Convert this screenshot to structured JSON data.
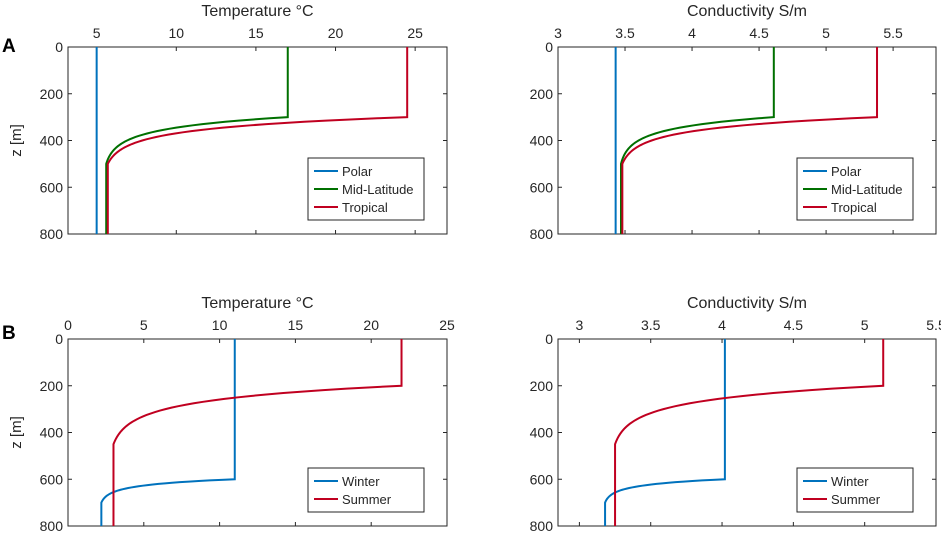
{
  "panels": [
    {
      "id": "A",
      "label": "A"
    },
    {
      "id": "B",
      "label": "B"
    }
  ],
  "chart_data": [
    {
      "panel": "A",
      "type": "line",
      "title": "Temperature °C",
      "xlabel": "Temperature °C",
      "ylabel": "z [m]",
      "xlim": [
        3.2,
        27
      ],
      "ylim": [
        0,
        800
      ],
      "y_reversed": true,
      "xticks": [
        5,
        10,
        15,
        20,
        25
      ],
      "xtick_labels": [
        "5",
        "10",
        "15",
        "20",
        "25"
      ],
      "yticks": [
        0,
        200,
        400,
        600,
        800
      ],
      "ytick_labels": [
        "0",
        "200",
        "400",
        "600",
        "800"
      ],
      "legend": [
        "Polar",
        "Mid-Latitude",
        "Tropical"
      ],
      "legend_position": "bottom-right",
      "series": [
        {
          "name": "Polar",
          "color": "#0072BD",
          "shape": "constant",
          "surface": 5,
          "deep": 5
        },
        {
          "name": "Mid-Latitude",
          "color": "#007000",
          "shape": "thermocline",
          "surface": 17,
          "deep": 5.6,
          "mixed_layer_depth": 300,
          "thermocline_bottom": 500
        },
        {
          "name": "Tropical",
          "color": "#C00020",
          "shape": "thermocline",
          "surface": 24.5,
          "deep": 5.7,
          "mixed_layer_depth": 300,
          "thermocline_bottom": 500
        }
      ]
    },
    {
      "panel": "A",
      "type": "line",
      "title": "Conductivity S/m",
      "xlabel": "Conductivity S/m",
      "ylabel": "",
      "xlim": [
        3,
        5.82
      ],
      "ylim": [
        0,
        800
      ],
      "y_reversed": true,
      "xticks": [
        3,
        3.5,
        4,
        4.5,
        5,
        5.5
      ],
      "xtick_labels": [
        "3",
        "3.5",
        "4",
        "4.5",
        "5",
        "5.5"
      ],
      "yticks": [
        0,
        200,
        400,
        600,
        800
      ],
      "ytick_labels": [
        "0",
        "200",
        "400",
        "600",
        "800"
      ],
      "legend": [
        "Polar",
        "Mid-Latitude",
        "Tropical"
      ],
      "legend_position": "bottom-right",
      "series": [
        {
          "name": "Polar",
          "color": "#0072BD",
          "shape": "constant",
          "surface": 3.43,
          "deep": 3.43
        },
        {
          "name": "Mid-Latitude",
          "color": "#007000",
          "shape": "thermocline",
          "surface": 4.61,
          "deep": 3.47,
          "mixed_layer_depth": 300,
          "thermocline_bottom": 500
        },
        {
          "name": "Tropical",
          "color": "#C00020",
          "shape": "thermocline",
          "surface": 5.38,
          "deep": 3.48,
          "mixed_layer_depth": 300,
          "thermocline_bottom": 500
        }
      ]
    },
    {
      "panel": "B",
      "type": "line",
      "title": "Temperature °C",
      "xlabel": "Temperature °C",
      "ylabel": "z [m]",
      "xlim": [
        0,
        25
      ],
      "ylim": [
        0,
        800
      ],
      "y_reversed": true,
      "xticks": [
        0,
        5,
        10,
        15,
        20,
        25
      ],
      "xtick_labels": [
        "0",
        "5",
        "10",
        "15",
        "20",
        "25"
      ],
      "yticks": [
        0,
        200,
        400,
        600,
        800
      ],
      "ytick_labels": [
        "0",
        "200",
        "400",
        "600",
        "800"
      ],
      "legend": [
        "Winter",
        "Summer"
      ],
      "legend_position": "bottom-right",
      "series": [
        {
          "name": "Winter",
          "color": "#0072BD",
          "shape": "thermocline",
          "surface": 11,
          "deep": 2.2,
          "mixed_layer_depth": 600,
          "thermocline_bottom": 700
        },
        {
          "name": "Summer",
          "color": "#C00020",
          "shape": "thermocline",
          "surface": 22,
          "deep": 3,
          "mixed_layer_depth": 200,
          "thermocline_bottom": 450
        }
      ]
    },
    {
      "panel": "B",
      "type": "line",
      "title": "Conductivity S/m",
      "xlabel": "Conductivity S/m",
      "ylabel": "",
      "xlim": [
        2.85,
        5.5
      ],
      "ylim": [
        0,
        800
      ],
      "y_reversed": true,
      "xticks": [
        3,
        3.5,
        4,
        4.5,
        5,
        5.5
      ],
      "xtick_labels": [
        "3",
        "3.5",
        "4",
        "4.5",
        "5",
        "5.5"
      ],
      "yticks": [
        0,
        200,
        400,
        600,
        800
      ],
      "ytick_labels": [
        "0",
        "200",
        "400",
        "600",
        "800"
      ],
      "legend": [
        "Winter",
        "Summer"
      ],
      "legend_position": "bottom-right",
      "series": [
        {
          "name": "Winter",
          "color": "#0072BD",
          "shape": "thermocline",
          "surface": 4.02,
          "deep": 3.18,
          "mixed_layer_depth": 600,
          "thermocline_bottom": 700
        },
        {
          "name": "Summer",
          "color": "#C00020",
          "shape": "thermocline",
          "surface": 5.13,
          "deep": 3.25,
          "mixed_layer_depth": 200,
          "thermocline_bottom": 450
        }
      ]
    }
  ]
}
